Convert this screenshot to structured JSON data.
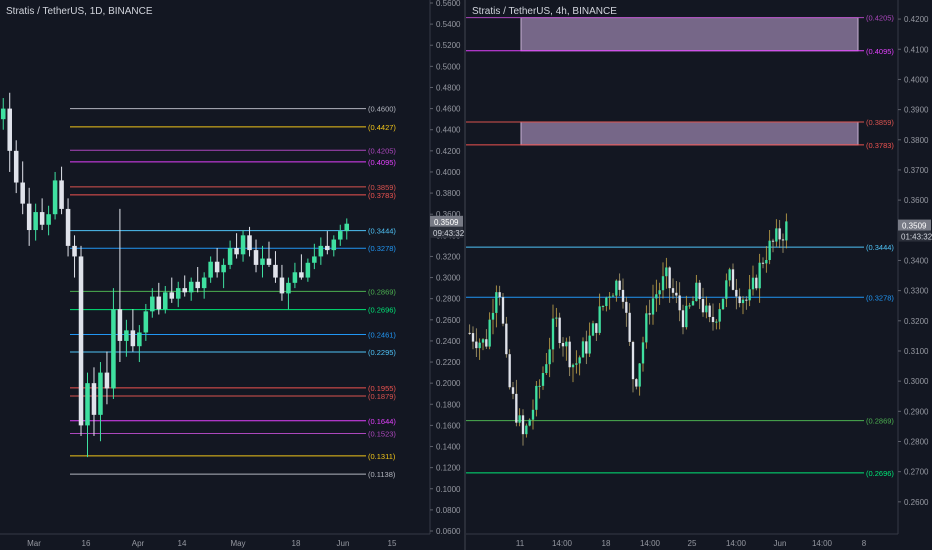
{
  "colors": {
    "background": "#131722",
    "up": "#26a69a",
    "up_bright": "#3fe0a0",
    "down": "#e0e3eb",
    "axis_text": "#9598a1",
    "price_tag": "#787b86"
  },
  "chart_data": [
    {
      "type": "candlestick",
      "title": "Stratis / TetherUS, 1D, BINANCE",
      "x_ticks": [
        "Mar",
        "16",
        "Apr",
        "14",
        "May",
        "18",
        "Jun",
        "15"
      ],
      "y_ticks": [
        "0.5600",
        "0.5400",
        "0.5200",
        "0.5000",
        "0.4800",
        "0.4600",
        "0.4400",
        "0.4200",
        "0.4000",
        "0.3800",
        "0.3600",
        "0.3400",
        "0.3200",
        "0.3000",
        "0.2800",
        "0.2600",
        "0.2400",
        "0.2200",
        "0.2000",
        "0.1800",
        "0.1600",
        "0.1400",
        "0.1200",
        "0.1000",
        "0.0800",
        "0.0600"
      ],
      "ylim": [
        0.06,
        0.56
      ],
      "last_price": "0.3509",
      "countdown": "09:43:32",
      "levels": [
        {
          "value": 0.46,
          "label": "(0.4600)",
          "color": "#b2b5be"
        },
        {
          "value": 0.4427,
          "label": "(0.4427)",
          "color": "#f0c419"
        },
        {
          "value": 0.4205,
          "label": "(0.4205)",
          "color": "#ab47bc"
        },
        {
          "value": 0.4095,
          "label": "(0.4095)",
          "color": "#e040fb"
        },
        {
          "value": 0.3859,
          "label": "(0.3859)",
          "color": "#d9534f"
        },
        {
          "value": 0.3783,
          "label": "(0.3783)",
          "color": "#ef5350"
        },
        {
          "value": 0.3444,
          "label": "(0.3444)",
          "color": "#4fc3f7"
        },
        {
          "value": 0.3278,
          "label": "(0.3278)",
          "color": "#2196f3"
        },
        {
          "value": 0.2869,
          "label": "(0.2869)",
          "color": "#4caf50"
        },
        {
          "value": 0.2696,
          "label": "(0.2696)",
          "color": "#00e676"
        },
        {
          "value": 0.2461,
          "label": "(0.2461)",
          "color": "#2196f3"
        },
        {
          "value": 0.2295,
          "label": "(0.2295)",
          "color": "#4fc3f7"
        },
        {
          "value": 0.1955,
          "label": "(0.1955)",
          "color": "#ef5350"
        },
        {
          "value": 0.1879,
          "label": "(0.1879)",
          "color": "#d9534f"
        },
        {
          "value": 0.1644,
          "label": "(0.1644)",
          "color": "#e040fb"
        },
        {
          "value": 0.1523,
          "label": "(0.1523)",
          "color": "#ab47bc"
        },
        {
          "value": 0.1311,
          "label": "(0.1311)",
          "color": "#f0c419"
        },
        {
          "value": 0.1138,
          "label": "(0.1138)",
          "color": "#b2b5be"
        }
      ],
      "candles": [
        [
          0.45,
          0.47,
          0.44,
          0.46
        ],
        [
          0.46,
          0.475,
          0.4,
          0.42
        ],
        [
          0.42,
          0.43,
          0.38,
          0.39
        ],
        [
          0.39,
          0.41,
          0.36,
          0.37
        ],
        [
          0.37,
          0.385,
          0.33,
          0.345
        ],
        [
          0.345,
          0.37,
          0.335,
          0.362
        ],
        [
          0.362,
          0.375,
          0.345,
          0.35
        ],
        [
          0.35,
          0.368,
          0.34,
          0.36
        ],
        [
          0.36,
          0.4,
          0.355,
          0.392
        ],
        [
          0.392,
          0.405,
          0.36,
          0.365
        ],
        [
          0.365,
          0.375,
          0.32,
          0.33
        ],
        [
          0.33,
          0.34,
          0.3,
          0.32
        ],
        [
          0.32,
          0.33,
          0.15,
          0.16
        ],
        [
          0.16,
          0.21,
          0.13,
          0.2
        ],
        [
          0.2,
          0.215,
          0.15,
          0.17
        ],
        [
          0.17,
          0.22,
          0.145,
          0.21
        ],
        [
          0.21,
          0.23,
          0.18,
          0.195
        ],
        [
          0.195,
          0.29,
          0.185,
          0.27
        ],
        [
          0.27,
          0.365,
          0.22,
          0.24
        ],
        [
          0.24,
          0.26,
          0.225,
          0.25
        ],
        [
          0.25,
          0.27,
          0.23,
          0.235
        ],
        [
          0.235,
          0.255,
          0.22,
          0.248
        ],
        [
          0.248,
          0.275,
          0.24,
          0.268
        ],
        [
          0.268,
          0.29,
          0.262,
          0.282
        ],
        [
          0.282,
          0.295,
          0.265,
          0.27
        ],
        [
          0.27,
          0.292,
          0.266,
          0.286
        ],
        [
          0.286,
          0.3,
          0.276,
          0.28
        ],
        [
          0.28,
          0.296,
          0.272,
          0.29
        ],
        [
          0.29,
          0.302,
          0.282,
          0.286
        ],
        [
          0.286,
          0.3,
          0.278,
          0.296
        ],
        [
          0.296,
          0.31,
          0.286,
          0.29
        ],
        [
          0.29,
          0.305,
          0.28,
          0.3
        ],
        [
          0.3,
          0.32,
          0.295,
          0.315
        ],
        [
          0.315,
          0.328,
          0.3,
          0.305
        ],
        [
          0.305,
          0.318,
          0.29,
          0.312
        ],
        [
          0.312,
          0.335,
          0.308,
          0.328
        ],
        [
          0.328,
          0.342,
          0.318,
          0.322
        ],
        [
          0.322,
          0.345,
          0.315,
          0.34
        ],
        [
          0.34,
          0.348,
          0.32,
          0.326
        ],
        [
          0.326,
          0.336,
          0.305,
          0.312
        ],
        [
          0.312,
          0.33,
          0.3,
          0.318
        ],
        [
          0.318,
          0.334,
          0.31,
          0.312
        ],
        [
          0.312,
          0.325,
          0.295,
          0.3
        ],
        [
          0.3,
          0.312,
          0.278,
          0.285
        ],
        [
          0.285,
          0.3,
          0.27,
          0.295
        ],
        [
          0.295,
          0.314,
          0.29,
          0.305
        ],
        [
          0.305,
          0.322,
          0.298,
          0.3
        ],
        [
          0.3,
          0.318,
          0.296,
          0.314
        ],
        [
          0.314,
          0.332,
          0.308,
          0.32
        ],
        [
          0.32,
          0.338,
          0.312,
          0.33
        ],
        [
          0.33,
          0.344,
          0.322,
          0.326
        ],
        [
          0.326,
          0.34,
          0.32,
          0.336
        ],
        [
          0.336,
          0.35,
          0.33,
          0.344
        ],
        [
          0.344,
          0.356,
          0.336,
          0.351
        ]
      ]
    },
    {
      "type": "candlestick",
      "title": "Stratis / TetherUS, 4h, BINANCE",
      "x_ticks": [
        "11",
        "14:00",
        "18",
        "14:00",
        "25",
        "14:00",
        "Jun",
        "14:00",
        "8"
      ],
      "y_ticks": [
        "0.4200",
        "0.4100",
        "0.4000",
        "0.3900",
        "0.3800",
        "0.3700",
        "0.3600",
        "0.3500",
        "0.3400",
        "0.3300",
        "0.3200",
        "0.3100",
        "0.3000",
        "0.2900",
        "0.2800",
        "0.2700",
        "0.2600"
      ],
      "ylim": [
        0.25,
        0.425
      ],
      "last_price": "0.3509",
      "countdown": "01:43:32",
      "levels": [
        {
          "value": 0.4205,
          "label": "(0.4205)",
          "color": "#ab47bc"
        },
        {
          "value": 0.4095,
          "label": "(0.4095)",
          "color": "#e040fb"
        },
        {
          "value": 0.3859,
          "label": "(0.3859)",
          "color": "#d9534f"
        },
        {
          "value": 0.3783,
          "label": "(0.3783)",
          "color": "#ef5350"
        },
        {
          "value": 0.3444,
          "label": "(0.3444)",
          "color": "#4fc3f7"
        },
        {
          "value": 0.3278,
          "label": "(0.3278)",
          "color": "#2196f3"
        },
        {
          "value": 0.2869,
          "label": "(0.2869)",
          "color": "#4caf50"
        },
        {
          "value": 0.2696,
          "label": "(0.2696)",
          "color": "#00e676"
        }
      ],
      "zones": [
        {
          "from": 0.4095,
          "to": 0.4205
        },
        {
          "from": 0.3783,
          "to": 0.3859
        }
      ]
    }
  ]
}
